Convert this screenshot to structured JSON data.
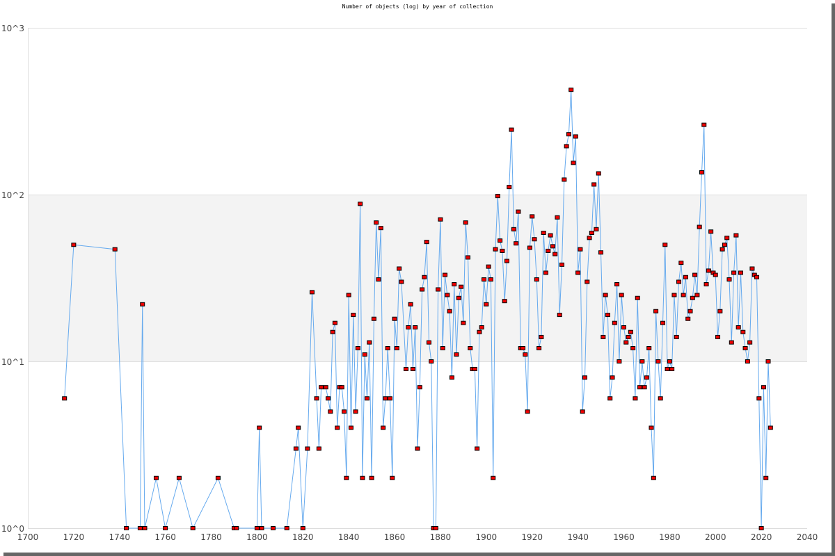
{
  "chart_data": {
    "type": "line",
    "title": "Number of objects (log) by year of collection",
    "xlabel": "",
    "ylabel": "",
    "xlim": [
      1700,
      2040
    ],
    "ylim": [
      1,
      1000
    ],
    "yscale": "log",
    "x_ticks": [
      "1700",
      "1720",
      "1740",
      "1760",
      "1780",
      "1800",
      "1820",
      "1840",
      "1860",
      "1880",
      "1900",
      "1920",
      "1940",
      "1960",
      "1980",
      "2000",
      "2020",
      "2040"
    ],
    "y_ticks": [
      "10^0",
      "10^1",
      "10^2",
      "10^3"
    ],
    "colors": {
      "line": "#66aaee",
      "marker": "#ee0000",
      "marker_stroke": "#000000",
      "band": "#f3f3f3",
      "grid": "#dddddd"
    },
    "series": [
      {
        "name": "objects",
        "x": [
          1716,
          1720,
          1738,
          1743,
          1749,
          1750,
          1751,
          1756,
          1760,
          1766,
          1772,
          1783,
          1790,
          1791,
          1800,
          1801,
          1802,
          1807,
          1813,
          1817,
          1818,
          1820,
          1822,
          1824,
          1826,
          1827,
          1828,
          1830,
          1831,
          1832,
          1833,
          1834,
          1835,
          1836,
          1837,
          1838,
          1839,
          1840,
          1841,
          1842,
          1843,
          1844,
          1845,
          1846,
          1847,
          1848,
          1849,
          1850,
          1851,
          1852,
          1853,
          1854,
          1855,
          1856,
          1857,
          1858,
          1859,
          1860,
          1861,
          1862,
          1863,
          1865,
          1866,
          1867,
          1868,
          1869,
          1870,
          1871,
          1872,
          1873,
          1874,
          1875,
          1876,
          1877,
          1878,
          1879,
          1880,
          1881,
          1882,
          1883,
          1884,
          1885,
          1886,
          1887,
          1888,
          1889,
          1890,
          1891,
          1892,
          1893,
          1894,
          1895,
          1896,
          1897,
          1898,
          1899,
          1900,
          1901,
          1902,
          1903,
          1904,
          1905,
          1906,
          1907,
          1908,
          1909,
          1910,
          1911,
          1912,
          1913,
          1914,
          1915,
          1916,
          1917,
          1918,
          1919,
          1920,
          1921,
          1922,
          1923,
          1924,
          1925,
          1926,
          1927,
          1928,
          1929,
          1930,
          1931,
          1932,
          1933,
          1934,
          1935,
          1936,
          1937,
          1938,
          1939,
          1940,
          1941,
          1942,
          1943,
          1944,
          1945,
          1946,
          1947,
          1948,
          1949,
          1950,
          1951,
          1952,
          1953,
          1954,
          1955,
          1956,
          1957,
          1958,
          1959,
          1960,
          1961,
          1962,
          1963,
          1964,
          1965,
          1966,
          1967,
          1968,
          1969,
          1970,
          1971,
          1972,
          1973,
          1974,
          1975,
          1976,
          1977,
          1978,
          1979,
          1980,
          1981,
          1982,
          1983,
          1984,
          1985,
          1986,
          1987,
          1988,
          1989,
          1990,
          1991,
          1992,
          1993,
          1994,
          1995,
          1996,
          1997,
          1998,
          1999,
          2000,
          2001,
          2002,
          2003,
          2004,
          2005,
          2006,
          2007,
          2008,
          2009,
          2010,
          2011,
          2012,
          2013,
          2014,
          2015,
          2016,
          2017,
          2018,
          2019,
          2020,
          2021,
          2022,
          2023,
          2024
        ],
        "values": [
          6,
          50,
          47,
          1,
          1,
          22,
          1,
          2,
          1,
          2,
          1,
          2,
          1,
          1,
          1,
          4,
          1,
          1,
          1,
          3,
          4,
          1,
          3,
          26,
          6,
          3,
          7,
          7,
          6,
          5,
          15,
          17,
          4,
          7,
          7,
          5,
          2,
          25,
          4,
          19,
          5,
          12,
          88,
          2,
          11,
          6,
          13,
          2,
          18,
          68,
          31,
          63,
          4,
          6,
          12,
          6,
          2,
          18,
          12,
          36,
          30,
          9,
          16,
          22,
          9,
          16,
          3,
          7,
          27,
          32,
          52,
          13,
          10,
          1,
          1,
          27,
          71,
          12,
          33,
          25,
          20,
          8,
          29,
          11,
          24,
          28,
          17,
          68,
          42,
          12,
          9,
          9,
          3,
          15,
          16,
          31,
          22,
          37,
          31,
          2,
          47,
          98,
          53,
          46,
          23,
          40,
          111,
          245,
          62,
          51,
          79,
          12,
          12,
          11,
          5,
          48,
          74,
          54,
          31,
          12,
          14,
          59,
          34,
          46,
          57,
          49,
          44,
          73,
          19,
          38,
          123,
          195,
          230,
          425,
          155,
          223,
          34,
          47,
          5,
          8,
          30,
          55,
          59,
          115,
          62,
          134,
          45,
          14,
          25,
          19,
          6,
          8,
          17,
          29,
          10,
          25,
          16,
          13,
          14,
          15,
          12,
          6,
          24,
          7,
          10,
          7,
          8,
          12,
          4,
          2,
          20,
          10,
          6,
          17,
          50,
          9,
          10,
          9,
          25,
          14,
          30,
          39,
          25,
          32,
          18,
          20,
          24,
          33,
          25,
          64,
          136,
          262,
          29,
          35,
          60,
          34,
          33,
          14,
          20,
          47,
          50,
          55,
          31,
          13,
          34,
          57,
          16,
          34,
          15,
          12,
          10,
          13,
          36,
          33,
          32,
          6,
          1,
          7,
          2,
          10,
          4
        ]
      }
    ]
  }
}
